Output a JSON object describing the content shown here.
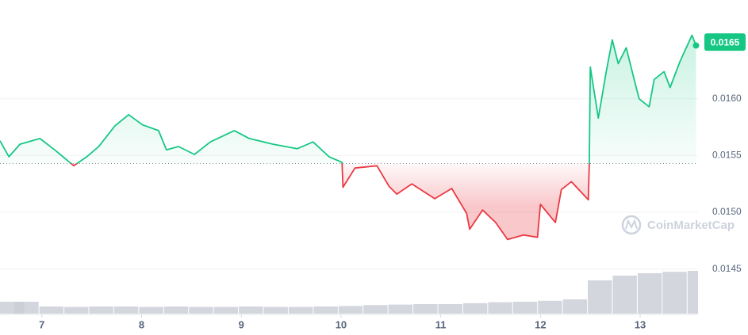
{
  "chart_data": {
    "type": "line",
    "x": [
      6.58,
      6.67,
      6.78,
      6.98,
      7.13,
      7.32,
      7.45,
      7.57,
      7.73,
      7.87,
      8.01,
      8.17,
      8.25,
      8.37,
      8.53,
      8.69,
      8.93,
      9.08,
      9.32,
      9.56,
      9.72,
      9.88,
      10.01,
      10.02,
      10.14,
      10.36,
      10.48,
      10.56,
      10.71,
      10.94,
      11.11,
      11.26,
      11.29,
      11.42,
      11.55,
      11.67,
      11.83,
      11.97,
      12.0,
      12.15,
      12.21,
      12.31,
      12.48,
      12.49,
      12.5,
      12.58,
      12.66,
      12.72,
      12.78,
      12.86,
      12.94,
      12.99,
      13.09,
      13.14,
      13.24,
      13.3,
      13.4,
      13.52,
      13.56
    ],
    "series": [
      {
        "color": "#16c784",
        "color_below": "#ea3943",
        "values": [
          0.01563,
          0.01549,
          0.0156,
          0.01565,
          0.01555,
          0.01541,
          0.01549,
          0.01558,
          0.01576,
          0.01586,
          0.01577,
          0.01572,
          0.01555,
          0.01558,
          0.01551,
          0.01562,
          0.01572,
          0.01565,
          0.0156,
          0.01556,
          0.01562,
          0.01549,
          0.01544,
          0.01522,
          0.01539,
          0.01541,
          0.01523,
          0.01516,
          0.01525,
          0.01512,
          0.01521,
          0.01499,
          0.01485,
          0.01502,
          0.01491,
          0.01476,
          0.0148,
          0.01478,
          0.01507,
          0.01491,
          0.0152,
          0.01527,
          0.01511,
          0.01543,
          0.01628,
          0.01583,
          0.01624,
          0.01652,
          0.01631,
          0.01645,
          0.01617,
          0.016,
          0.01593,
          0.01617,
          0.01624,
          0.0161,
          0.01633,
          0.01656,
          0.01647
        ]
      }
    ],
    "baseline": 0.01543,
    "price_label": 0.0165,
    "xlim": [
      6.58,
      13.62
    ],
    "xticks": [
      7,
      8,
      9,
      10,
      11,
      12,
      13
    ],
    "ylim": [
      0.0141,
      0.01685
    ],
    "yticks": [
      {
        "value": 0.0145,
        "label": "0.0145"
      },
      {
        "value": 0.015,
        "label": "0.0150"
      },
      {
        "value": 0.0155,
        "label": "0.0155"
      },
      {
        "value": 0.016,
        "label": "0.0160"
      }
    ],
    "grid": true,
    "volume": {
      "color": "#c9ccd6",
      "ylim": [
        0,
        100
      ],
      "x": [
        6.6,
        6.85,
        7.1,
        7.35,
        7.6,
        7.85,
        8.1,
        8.35,
        8.6,
        8.85,
        9.1,
        9.35,
        9.6,
        9.85,
        10.1,
        10.35,
        10.6,
        10.85,
        11.1,
        11.35,
        11.6,
        11.85,
        12.1,
        12.35,
        12.6,
        12.85,
        13.1,
        13.35,
        13.6
      ],
      "values": [
        25,
        25,
        15,
        14,
        15,
        15,
        14,
        15,
        14,
        14,
        15,
        14,
        14,
        15,
        16,
        18,
        19,
        20,
        20,
        22,
        24,
        25,
        27,
        30,
        70,
        80,
        85,
        88,
        90
      ]
    },
    "watermark": "CoinMarketCap"
  }
}
